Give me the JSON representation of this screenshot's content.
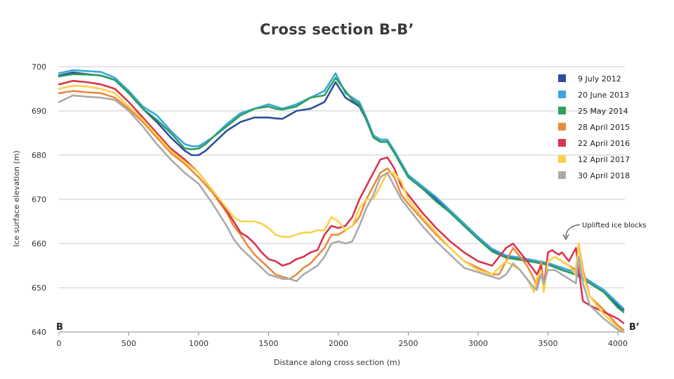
{
  "chart_data": {
    "type": "line",
    "title": "Cross section B-B’",
    "xlabel": "Distance along cross section (m)",
    "ylabel": "Ice surface elevation (m)",
    "xlim": [
      0,
      4050
    ],
    "ylim": [
      640,
      700
    ],
    "xticks": [
      0,
      500,
      1000,
      1500,
      2000,
      2500,
      3000,
      3500,
      4000
    ],
    "yticks": [
      640,
      650,
      660,
      670,
      680,
      690,
      700
    ],
    "grid": "horizontal",
    "legend_position": "top-right",
    "start_label": "B",
    "end_label": "B’",
    "annotations": [
      {
        "text": "Uplifted ice blocks",
        "x": 3600,
        "y": 658.5
      }
    ],
    "series": [
      {
        "name": "9 July 2012",
        "color": "#2e4f9c",
        "x": [
          0,
          100,
          200,
          300,
          400,
          500,
          600,
          700,
          800,
          900,
          950,
          1000,
          1050,
          1100,
          1200,
          1300,
          1400,
          1500,
          1550,
          1600,
          1700,
          1800,
          1900,
          1980,
          2050,
          2100,
          2150,
          2200,
          2250,
          2300,
          2350,
          2400,
          2500,
          2600,
          2700,
          2800,
          2900,
          3000,
          3100,
          3200,
          3300,
          3400,
          3500,
          3600,
          3700,
          3800,
          3900,
          4000,
          4040
        ],
        "y": [
          698,
          698.7,
          698.3,
          698,
          697,
          694,
          690.5,
          687.5,
          684,
          681,
          680,
          680,
          681,
          682.5,
          685.5,
          687.5,
          688.5,
          688.5,
          688.3,
          688.2,
          690,
          690.5,
          692,
          696.5,
          693,
          692,
          691,
          688,
          684,
          683,
          683,
          681,
          675,
          672.5,
          670,
          667,
          664,
          661,
          658.5,
          657,
          656.5,
          656,
          655.5,
          654,
          653,
          651,
          649,
          646,
          645
        ]
      },
      {
        "name": "20 June 2013",
        "color": "#3aa7dd",
        "x": [
          0,
          100,
          200,
          300,
          400,
          500,
          600,
          700,
          800,
          900,
          950,
          1000,
          1050,
          1100,
          1200,
          1300,
          1400,
          1500,
          1550,
          1600,
          1700,
          1800,
          1900,
          1980,
          2050,
          2100,
          2150,
          2200,
          2250,
          2300,
          2350,
          2400,
          2500,
          2600,
          2700,
          2800,
          2900,
          3000,
          3100,
          3200,
          3300,
          3400,
          3500,
          3600,
          3700,
          3800,
          3900,
          4000,
          4040
        ],
        "y": [
          698.5,
          699.2,
          699,
          698.8,
          697.5,
          694.5,
          691,
          689,
          685.5,
          682.5,
          682,
          682,
          683,
          684,
          687,
          689.5,
          690.5,
          691.5,
          691,
          690.5,
          691.5,
          693,
          694.5,
          698.5,
          694,
          693,
          692,
          688.5,
          684.5,
          683.5,
          683.5,
          681,
          675.5,
          673,
          670.5,
          667.5,
          664.5,
          661.5,
          658.8,
          657.3,
          656.8,
          656.2,
          655.6,
          654.5,
          653.5,
          651.5,
          649.5,
          646.5,
          645.3
        ]
      },
      {
        "name": "25 May 2014",
        "color": "#2e9e5e",
        "x": [
          0,
          100,
          200,
          300,
          400,
          500,
          600,
          700,
          800,
          900,
          950,
          1000,
          1050,
          1100,
          1200,
          1300,
          1400,
          1500,
          1550,
          1600,
          1700,
          1800,
          1900,
          1980,
          2050,
          2100,
          2150,
          2200,
          2250,
          2300,
          2350,
          2400,
          2500,
          2600,
          2700,
          2800,
          2900,
          3000,
          3100,
          3200,
          3300,
          3400,
          3500,
          3600,
          3700,
          3800,
          3900,
          4000,
          4040
        ],
        "y": [
          697.8,
          698.3,
          698.2,
          698,
          697,
          694,
          690.5,
          688,
          685,
          681.5,
          681.3,
          681.5,
          682.5,
          684,
          686.5,
          689,
          690.5,
          691,
          690.5,
          690.3,
          691,
          693,
          693.5,
          697.5,
          694.5,
          692.5,
          691.5,
          688,
          684,
          683,
          683,
          680.5,
          675,
          672.5,
          669.5,
          667,
          664,
          661,
          658.2,
          656.8,
          656.3,
          655.8,
          655.2,
          654,
          653,
          651,
          649,
          645.5,
          644.5
        ]
      },
      {
        "name": "28 April 2015",
        "color": "#ea8a3d",
        "x": [
          0,
          100,
          200,
          300,
          400,
          500,
          600,
          700,
          800,
          900,
          1000,
          1100,
          1200,
          1250,
          1300,
          1350,
          1400,
          1450,
          1500,
          1550,
          1600,
          1650,
          1700,
          1750,
          1800,
          1900,
          1950,
          2000,
          2050,
          2100,
          2150,
          2200,
          2250,
          2300,
          2350,
          2400,
          2450,
          2500,
          2600,
          2700,
          2800,
          2900,
          3000,
          3100,
          3150,
          3200,
          3250,
          3300,
          3350,
          3400,
          3420,
          3450,
          3470,
          3500,
          3550,
          3600,
          3650,
          3700,
          3720,
          3750,
          3800,
          3900,
          4000,
          4040
        ],
        "y": [
          694,
          694.5,
          694.2,
          694,
          693,
          690.5,
          687.5,
          684,
          680.5,
          678,
          675,
          671.5,
          667,
          664,
          662,
          659.5,
          657.5,
          656,
          654.5,
          653,
          652.5,
          652,
          653,
          654.5,
          655.5,
          659,
          662,
          662,
          663,
          664,
          666,
          670,
          673,
          676,
          677,
          675,
          671,
          669,
          665.5,
          662,
          659,
          656,
          654.5,
          653,
          653,
          656,
          659,
          657,
          655,
          652,
          650,
          656,
          650,
          656,
          657,
          656,
          655,
          654,
          660,
          654,
          648,
          645,
          641.5,
          640.5
        ]
      },
      {
        "name": "22 April 2016",
        "color": "#d9344f",
        "x": [
          0,
          100,
          200,
          300,
          400,
          500,
          600,
          700,
          800,
          900,
          1000,
          1100,
          1200,
          1250,
          1300,
          1350,
          1400,
          1450,
          1500,
          1550,
          1600,
          1650,
          1700,
          1750,
          1800,
          1850,
          1900,
          1950,
          2000,
          2050,
          2100,
          2150,
          2200,
          2250,
          2300,
          2350,
          2400,
          2450,
          2500,
          2600,
          2700,
          2800,
          2900,
          3000,
          3100,
          3150,
          3200,
          3250,
          3300,
          3350,
          3400,
          3420,
          3450,
          3470,
          3500,
          3530,
          3550,
          3580,
          3600,
          3650,
          3700,
          3720,
          3750,
          3800,
          3900,
          4000,
          4040
        ],
        "y": [
          696,
          696.8,
          696.5,
          696,
          695,
          692,
          688.5,
          685,
          681.5,
          679,
          676,
          672,
          667.5,
          665,
          662.5,
          661.5,
          660,
          658,
          656.5,
          656,
          655,
          655.5,
          656.5,
          657,
          658,
          658.5,
          662,
          664,
          663.5,
          664,
          666,
          670,
          673,
          676,
          679,
          679.5,
          677,
          673,
          671,
          667,
          663.5,
          660.5,
          658,
          656,
          655,
          657,
          659,
          660,
          658,
          656,
          654,
          653,
          655,
          650,
          658,
          658.5,
          658,
          657.5,
          658,
          656,
          659,
          654,
          647,
          646,
          644.5,
          643,
          642
        ]
      },
      {
        "name": "12 April 2017",
        "color": "#f8d24a",
        "x": [
          0,
          100,
          200,
          300,
          400,
          500,
          600,
          700,
          800,
          900,
          1000,
          1100,
          1150,
          1200,
          1250,
          1300,
          1350,
          1400,
          1450,
          1500,
          1550,
          1600,
          1650,
          1700,
          1750,
          1800,
          1850,
          1900,
          1950,
          2000,
          2050,
          2100,
          2150,
          2200,
          2250,
          2300,
          2350,
          2400,
          2450,
          2500,
          2600,
          2700,
          2800,
          2900,
          3000,
          3100,
          3200,
          3250,
          3300,
          3350,
          3400,
          3420,
          3450,
          3470,
          3500,
          3550,
          3600,
          3650,
          3700,
          3720,
          3750,
          3800,
          3900,
          4000,
          4040
        ],
        "y": [
          695,
          695.7,
          695.5,
          695,
          694,
          691,
          688,
          684.5,
          681,
          678.5,
          676,
          672,
          670,
          668,
          666,
          665,
          665,
          665,
          664.5,
          663.5,
          662,
          661.5,
          661.5,
          662,
          662.5,
          662.5,
          663,
          663,
          666,
          665,
          663,
          664,
          668,
          670,
          670,
          673,
          676,
          676,
          674,
          670,
          666,
          662.5,
          659,
          656,
          654,
          653,
          656,
          655,
          654,
          652,
          649,
          652,
          654,
          649,
          656,
          657,
          656,
          655,
          653,
          660,
          653,
          648,
          644,
          641,
          640
        ]
      },
      {
        "name": "30 April 2018",
        "color": "#aaaaaa",
        "x": [
          0,
          100,
          200,
          300,
          400,
          500,
          600,
          700,
          800,
          900,
          1000,
          1100,
          1200,
          1250,
          1300,
          1350,
          1400,
          1450,
          1500,
          1550,
          1600,
          1650,
          1700,
          1750,
          1800,
          1850,
          1900,
          1950,
          2000,
          2050,
          2100,
          2150,
          2200,
          2250,
          2300,
          2350,
          2400,
          2450,
          2500,
          2600,
          2700,
          2800,
          2900,
          3000,
          3100,
          3150,
          3200,
          3250,
          3300,
          3350,
          3400,
          3420,
          3450,
          3470,
          3500,
          3550,
          3600,
          3650,
          3700,
          3720,
          3750,
          3800,
          3900,
          4000,
          4040
        ],
        "y": [
          692,
          693.5,
          693.2,
          693,
          692.5,
          690,
          686.5,
          682.5,
          679,
          676,
          673.5,
          669,
          664,
          661,
          659,
          657.5,
          656,
          654.5,
          653,
          652.5,
          652,
          652,
          651.5,
          653,
          654,
          655,
          657,
          660,
          660.5,
          660,
          660.5,
          664,
          668,
          671,
          675,
          676,
          673,
          670,
          668,
          664,
          660.5,
          657.5,
          654.5,
          653.5,
          652.5,
          652,
          653,
          655.5,
          654,
          652,
          650,
          649.5,
          653,
          651,
          654,
          654,
          653,
          652,
          651,
          657,
          651,
          646,
          643,
          640.5,
          640
        ]
      }
    ]
  }
}
